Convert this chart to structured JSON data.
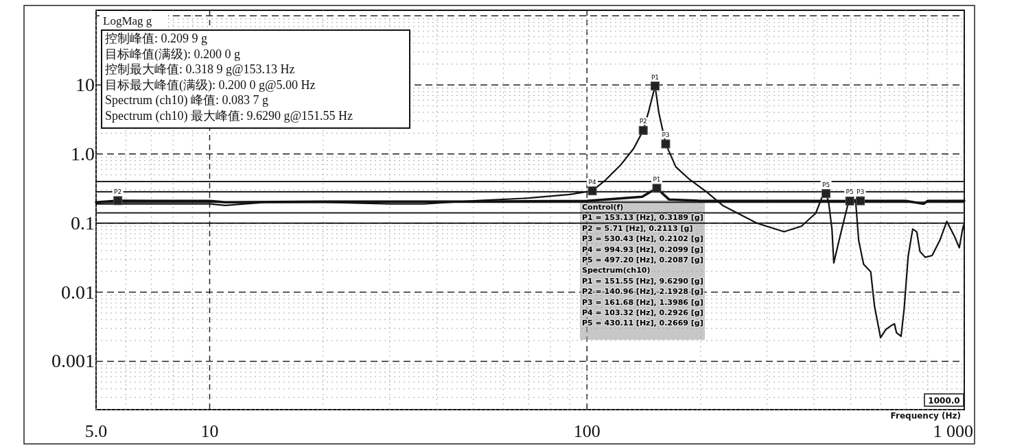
{
  "chart_data": {
    "type": "line",
    "xlabel": "Frequency (Hz)",
    "ylabel": "LogMag g",
    "log": "xy",
    "grid": true,
    "xlim": [
      5,
      1000
    ],
    "ylim": [
      0.0002,
      120
    ],
    "xticks": [
      {
        "value": 5,
        "label": "5.0"
      },
      10,
      100,
      {
        "value": 1000,
        "label": "1 000"
      }
    ],
    "yticks": [
      0.001,
      0.01,
      0.1,
      {
        "value": 1,
        "label": "1.0"
      },
      10
    ],
    "ref_lines": [
      {
        "axis": "y",
        "value": 0.4
      },
      {
        "axis": "y",
        "value": 0.283
      },
      {
        "axis": "y",
        "value": 0.2
      },
      {
        "axis": "y",
        "value": 0.141
      },
      {
        "axis": "y",
        "value": 0.1
      }
    ],
    "series": [
      {
        "type": "line",
        "color": "#111111",
        "x": [
          5,
          5.71,
          7,
          10,
          11,
          20,
          50,
          100,
          140,
          153.13,
          165,
          200,
          400,
          497.2,
          530.43,
          600,
          700,
          780,
          800,
          994.93,
          1000
        ],
        "values": [
          0.2,
          0.2113,
          0.21,
          0.21,
          0.2,
          0.205,
          0.205,
          0.21,
          0.24,
          0.3189,
          0.22,
          0.21,
          0.21,
          0.2087,
          0.2102,
          0.21,
          0.21,
          0.19,
          0.21,
          0.2099,
          0.21
        ]
      },
      {
        "type": "line",
        "color": "#111111",
        "x": [
          5,
          7,
          10,
          11,
          14,
          20,
          30,
          37,
          50,
          70,
          90,
          103.32,
          112,
          123,
          133,
          140.96,
          146,
          151.55,
          155,
          161.68,
          172,
          186,
          208,
          229,
          282,
          333,
          370,
          404,
          422,
          430.11,
          437,
          446,
          451,
          469,
          490,
          497.2,
          515,
          525,
          541,
          565,
          578,
          600,
          620,
          641,
          653,
          661,
          680,
          693,
          710,
          730,
          748,
          763,
          788,
          822,
          861,
          899,
          940,
          970,
          990,
          1000
        ],
        "values": [
          0.19,
          0.19,
          0.19,
          0.18,
          0.2,
          0.2,
          0.19,
          0.19,
          0.21,
          0.23,
          0.26,
          0.2926,
          0.42,
          0.7,
          1.2,
          2.1928,
          4.3,
          9.629,
          4,
          1.3986,
          0.65,
          0.44,
          0.28,
          0.18,
          0.1,
          0.075,
          0.09,
          0.139,
          0.256,
          0.2669,
          0.2,
          0.082,
          0.0265,
          0.066,
          0.174,
          0.21,
          0.218,
          0.056,
          0.0254,
          0.0198,
          0.00635,
          0.0022,
          0.0029,
          0.0033,
          0.0035,
          0.0026,
          0.0023,
          0.0058,
          0.033,
          0.082,
          0.075,
          0.039,
          0.032,
          0.034,
          0.056,
          0.106,
          0.066,
          0.044,
          0.082,
          0.1
        ]
      }
    ],
    "annotations": [
      "控制峰值: 0.209 9 g",
      "目标峰值(满级): 0.200 0 g",
      "控制最大峰值: 0.318 9 g@153.13 Hz",
      "目标最大峰值(满级): 0.200 0 g@5.00 Hz",
      "Spectrum (ch10) 峰值: 0.083 7 g",
      "Spectrum (ch10) 最大峰值: 9.6290 g@151.55 Hz",
      "1000.0",
      "Control(f)",
      "P1 = 153.13 [Hz], 0.3189 [g]",
      "P2 = 5.71 [Hz], 0.2113 [g]",
      "P3 = 530.43 [Hz], 0.2102 [g]",
      "P4 = 994.93 [Hz], 0.2099 [g]",
      "P5 = 497.20 [Hz], 0.2087 [g]",
      "Spectrum(ch10)",
      "P1 = 151.55 [Hz], 9.6290 [g]",
      "P2 = 140.96 [Hz], 2.1928 [g]",
      "P3 = 161.68 [Hz], 1.3986 [g]",
      "P4 = 103.32 [Hz], 0.2926 [g]",
      "P5 = 430.11 [Hz], 0.2669 [g]",
      {
        "text": "P1",
        "x": 151.55,
        "y": 9.629
      },
      {
        "text": "P2",
        "x": 140.96,
        "y": 2.1928
      },
      {
        "text": "P3",
        "x": 161.68,
        "y": 1.3986
      },
      {
        "text": "P4",
        "x": 103.32,
        "y": 0.2926
      },
      {
        "text": "P5",
        "x": 430.11,
        "y": 0.2669
      },
      {
        "text": "P1",
        "x": 153.13,
        "y": 0.3189
      },
      {
        "text": "P2",
        "x": 5.71,
        "y": 0.2113
      },
      {
        "text": "P3",
        "x": 530.43,
        "y": 0.2102
      },
      {
        "text": "P5",
        "x": 497.2,
        "y": 0.2087
      }
    ]
  }
}
